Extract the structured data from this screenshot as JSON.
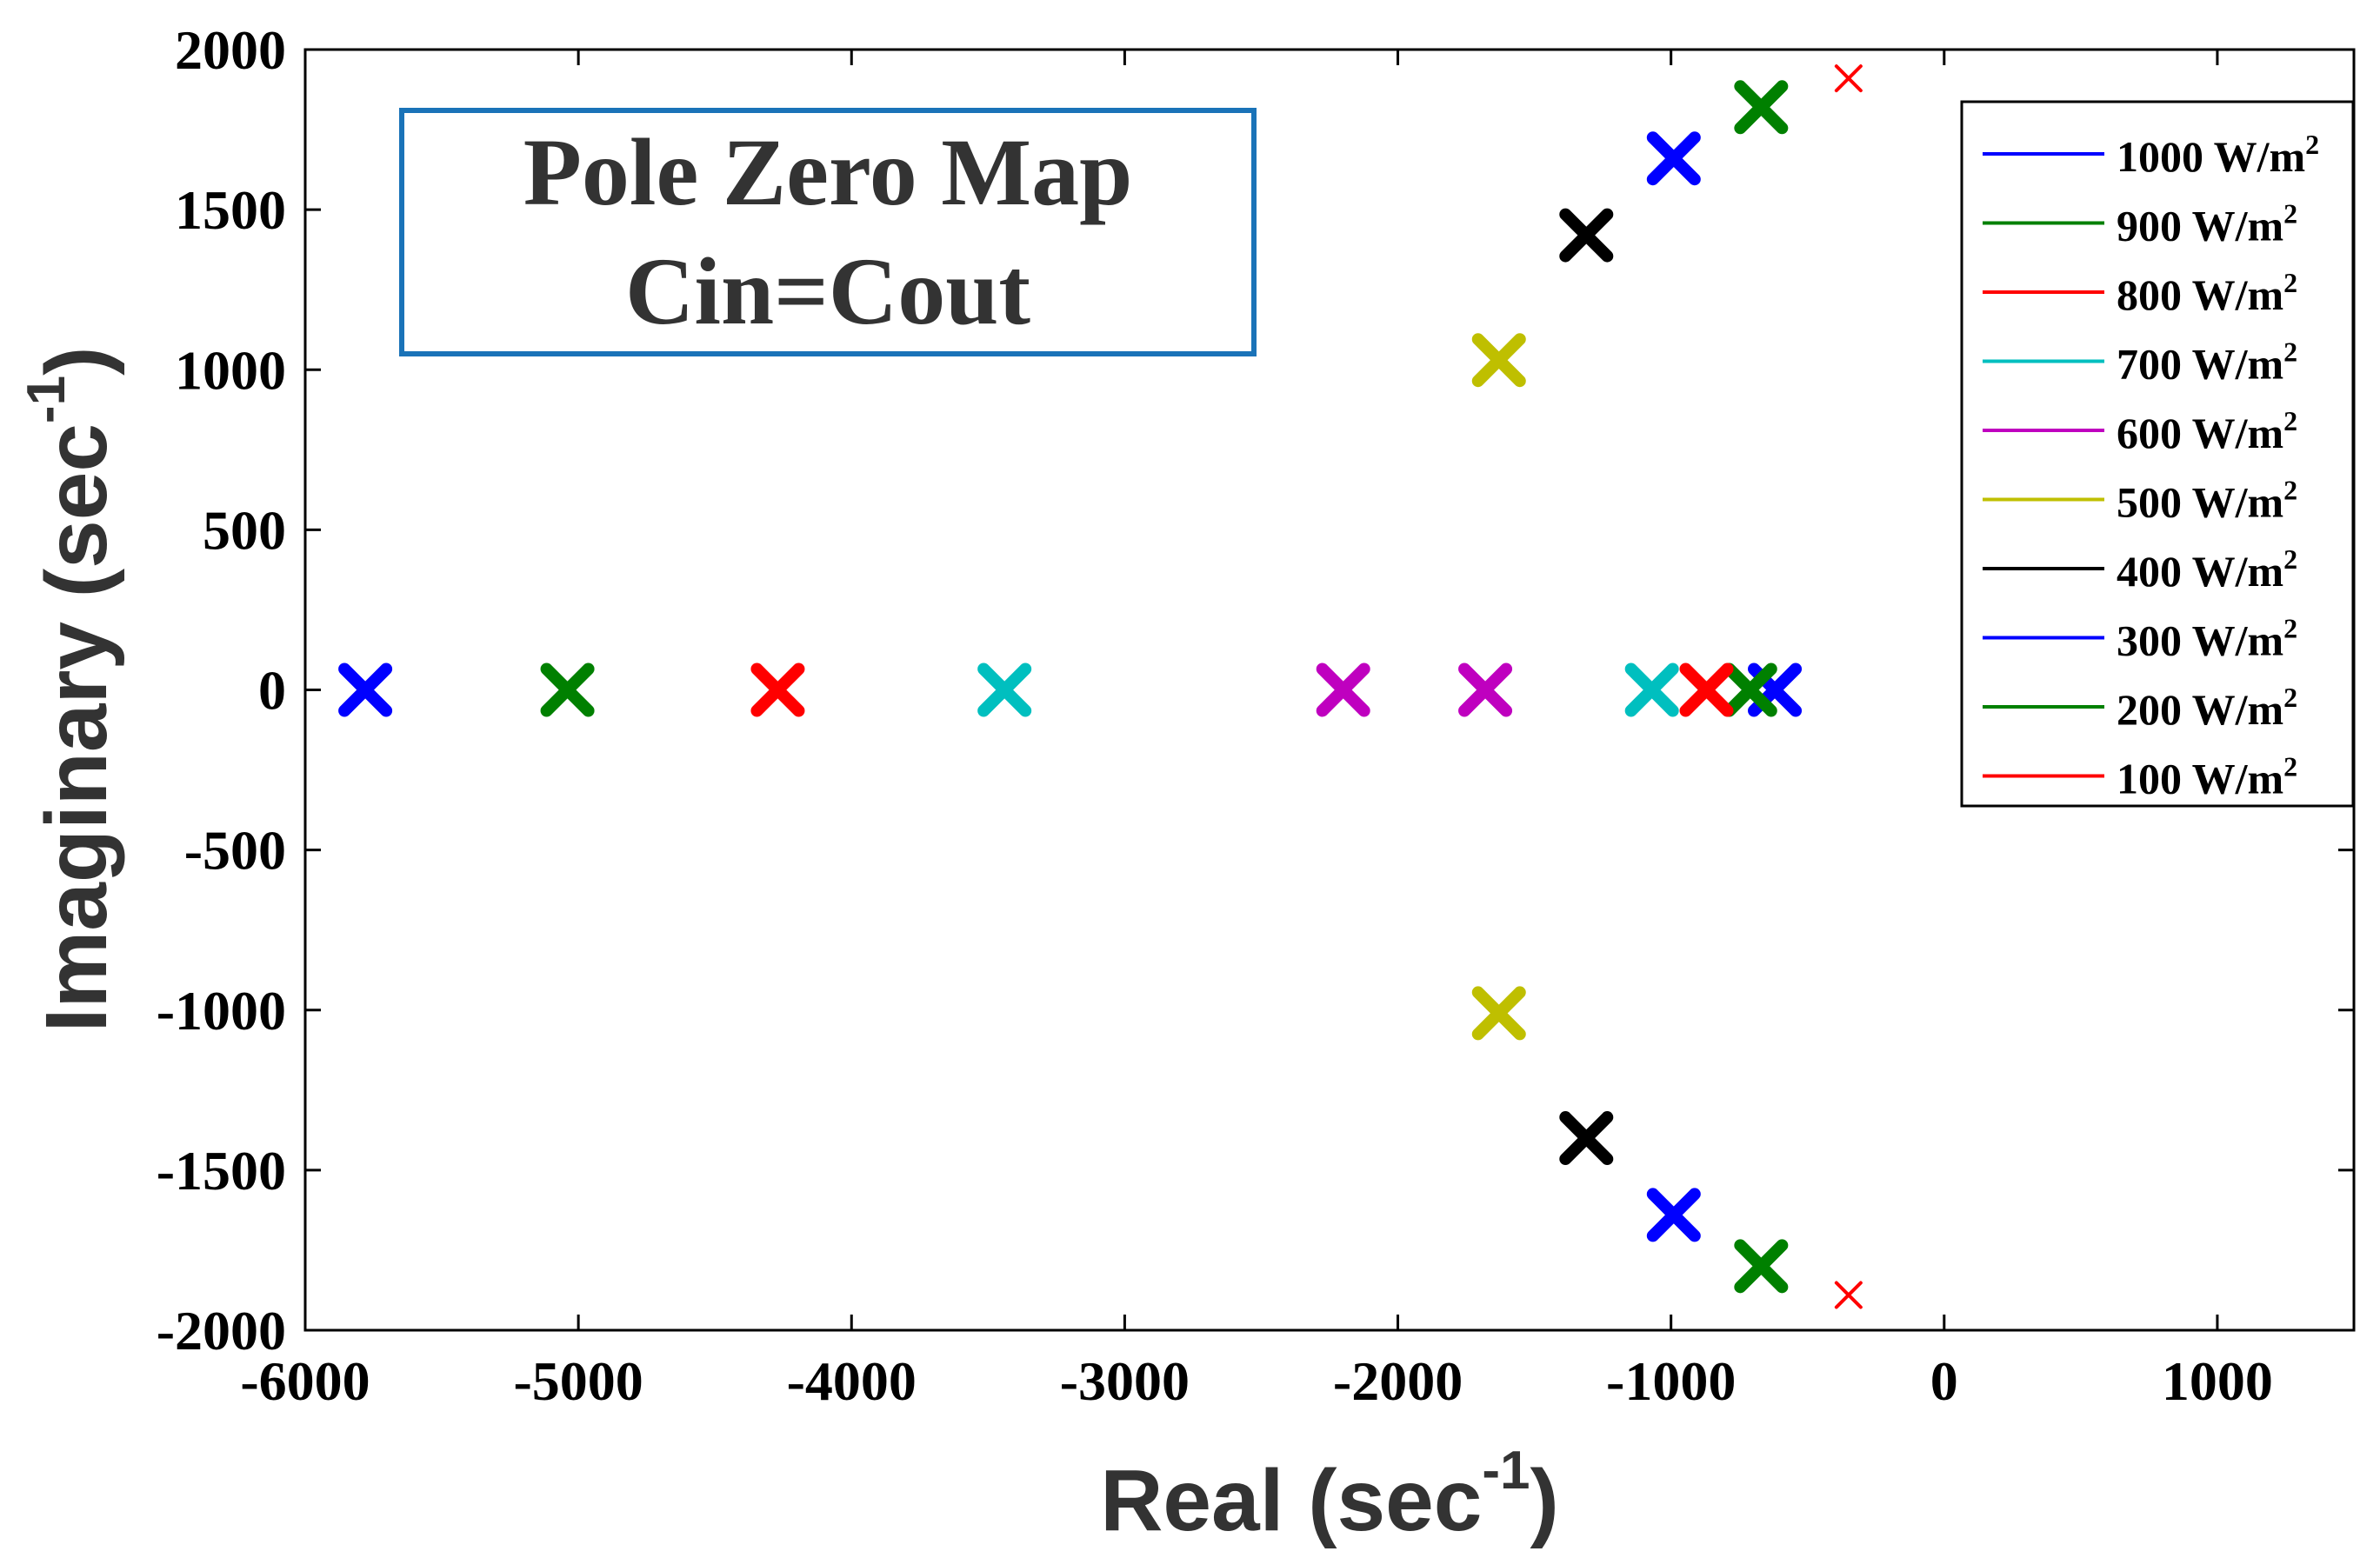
{
  "chart_data": {
    "type": "scatter",
    "title_box": {
      "line1": "Pole Zero Map",
      "line2": "Cin=Cout"
    },
    "xlabel": {
      "base": "Real (sec",
      "sup": "-1",
      "close": ")"
    },
    "ylabel": {
      "base": "Imaginary (sec",
      "sup": "-1",
      "close": ")"
    },
    "xlim": [
      -6000,
      1500
    ],
    "ylim": [
      -2000,
      2000
    ],
    "xticks": [
      -6000,
      -5000,
      -4000,
      -3000,
      -2000,
      -1000,
      0,
      1000
    ],
    "yticks": [
      -2000,
      -1500,
      -1000,
      -500,
      0,
      500,
      1000,
      1500,
      2000
    ],
    "grid": false,
    "legend_position": "top-right",
    "marker": "x",
    "series": [
      {
        "name": "1000 W/m",
        "sup": "2",
        "color": "#0000ff",
        "points": [
          [
            -5780,
            0
          ],
          [
            -620,
            0
          ]
        ]
      },
      {
        "name": "900 W/m",
        "sup": "2",
        "color": "#008000",
        "points": [
          [
            -5040,
            0
          ],
          [
            -710,
            0
          ]
        ]
      },
      {
        "name": "800 W/m",
        "sup": "2",
        "color": "#ff0000",
        "points": [
          [
            -4270,
            0
          ],
          [
            -870,
            0
          ]
        ]
      },
      {
        "name": "700 W/m",
        "sup": "2",
        "color": "#00bfbf",
        "points": [
          [
            -3440,
            0
          ],
          [
            -1070,
            0
          ]
        ]
      },
      {
        "name": "600 W/m",
        "sup": "2",
        "color": "#bf00bf",
        "points": [
          [
            -2200,
            0
          ],
          [
            -1680,
            0
          ]
        ]
      },
      {
        "name": "500 W/m",
        "sup": "2",
        "color": "#bfbf00",
        "points": [
          [
            -1630,
            1030
          ],
          [
            -1630,
            -1010
          ]
        ]
      },
      {
        "name": "400 W/m",
        "sup": "2",
        "color": "#000000",
        "points": [
          [
            -1310,
            1420
          ],
          [
            -1310,
            -1400
          ]
        ]
      },
      {
        "name": "300 W/m",
        "sup": "2",
        "color": "#0000ff",
        "points": [
          [
            -990,
            1660
          ],
          [
            -990,
            -1640
          ]
        ]
      },
      {
        "name": "200 W/m",
        "sup": "2",
        "color": "#008000",
        "points": [
          [
            -670,
            1820
          ],
          [
            -670,
            -1800
          ]
        ]
      },
      {
        "name": "100 W/m",
        "sup": "2",
        "color": "#ff0000",
        "points": [
          [
            -350,
            1910
          ],
          [
            -350,
            -1890
          ]
        ]
      }
    ]
  }
}
